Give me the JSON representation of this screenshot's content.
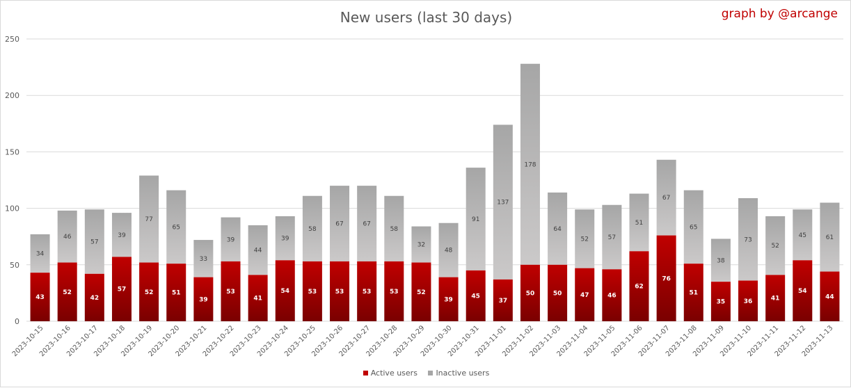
{
  "colors": {
    "active": "#c00000",
    "active_dark": "#7a0000",
    "inactive": "#a6a6a6",
    "inactive_light": "#cbc9c9",
    "grid": "#d9d9d9",
    "axis_text": "#595959"
  },
  "chart_data": {
    "type": "bar",
    "stacked": true,
    "title": "New users (last 30 days)",
    "credit": "graph by @arcange",
    "categories": [
      "2023-10-15",
      "2023-10-16",
      "2023-10-17",
      "2023-10-18",
      "2023-10-19",
      "2023-10-20",
      "2023-10-21",
      "2023-10-22",
      "2023-10-23",
      "2023-10-24",
      "2023-10-25",
      "2023-10-26",
      "2023-10-27",
      "2023-10-28",
      "2023-10-29",
      "2023-10-30",
      "2023-10-31",
      "2023-11-01",
      "2023-11-02",
      "2023-11-03",
      "2023-11-04",
      "2023-11-05",
      "2023-11-06",
      "2023-11-07",
      "2023-11-08",
      "2023-11-09",
      "2023-11-10",
      "2023-11-11",
      "2023-11-12",
      "2023-11-13"
    ],
    "series": [
      {
        "name": "Active users",
        "values": [
          43,
          52,
          42,
          57,
          52,
          51,
          39,
          53,
          41,
          54,
          53,
          53,
          53,
          53,
          52,
          39,
          45,
          37,
          50,
          50,
          47,
          46,
          62,
          76,
          51,
          35,
          36,
          41,
          54,
          44
        ]
      },
      {
        "name": "Inactive users",
        "values": [
          34,
          46,
          57,
          39,
          77,
          65,
          33,
          39,
          44,
          39,
          58,
          67,
          67,
          58,
          32,
          48,
          91,
          137,
          178,
          64,
          52,
          57,
          51,
          67,
          65,
          38,
          73,
          52,
          45,
          61
        ]
      }
    ],
    "ylim": [
      0,
      250
    ],
    "yticks": [
      "0",
      "50",
      "100",
      "150",
      "200",
      "250"
    ],
    "grid": true,
    "legend_position": "bottom"
  }
}
